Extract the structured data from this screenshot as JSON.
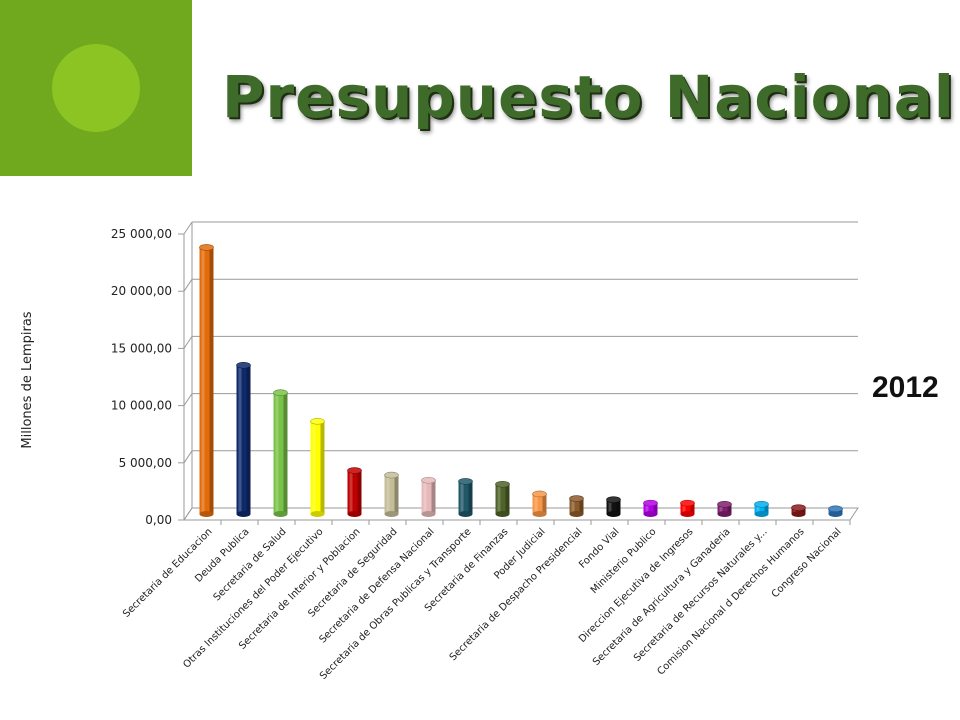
{
  "slide": {
    "title": "Presupuesto Nacional",
    "year": "2012",
    "accent_color": "#70a81e",
    "accent_circle_color": "#8cc424",
    "title_color": "#3f6b2a"
  },
  "chart_data": {
    "type": "bar",
    "title": "",
    "xlabel": "",
    "ylabel": "Millones de Lempiras",
    "ylim": [
      0,
      25000
    ],
    "yticks": [
      0,
      5000,
      10000,
      15000,
      20000,
      25000
    ],
    "ytick_labels": [
      "0,00",
      "5 000,00",
      "10 000,00",
      "15 000,00",
      "20 000,00",
      "25 000,00"
    ],
    "grid": true,
    "legend": "none",
    "categories": [
      "Secretaria de Educacion",
      "Deuda Publica",
      "Secretaria de Salud",
      "Otras Instituciones del Poder Ejecutivo",
      "Secretaria de Interior y Poblacion",
      "Secretaria de Seguridad",
      "Secretaria de Defensa Nacional",
      "Secretaria de Obras Publicas y Transporte",
      "Secretaria de Finanzas",
      "Poder Judicial",
      "Secretaria de Despacho Presidencial",
      "Fondo Vial",
      "Ministerio Publico",
      "Direccion Ejecutiva de Ingresos",
      "Secretaria de Agricultura y Ganaderia",
      "Secretaria de Recursos Naturales y...",
      "Comision Nacional d Derechos Humanos",
      "Congreso Nacional"
    ],
    "values": [
      23300,
      13000,
      10600,
      8100,
      3800,
      3400,
      2950,
      2850,
      2600,
      1750,
      1350,
      1250,
      950,
      950,
      850,
      850,
      550,
      450
    ],
    "colors": [
      "#e36c0a",
      "#0f2a6b",
      "#79c248",
      "#ffff00",
      "#c00000",
      "#c4bd97",
      "#e6b9b8",
      "#215868",
      "#4f6228",
      "#f79646",
      "#8c5a2b",
      "#111111",
      "#b400e6",
      "#ff0000",
      "#7f1f6f",
      "#00b0f0",
      "#8b1a1a",
      "#2e75b6"
    ]
  }
}
